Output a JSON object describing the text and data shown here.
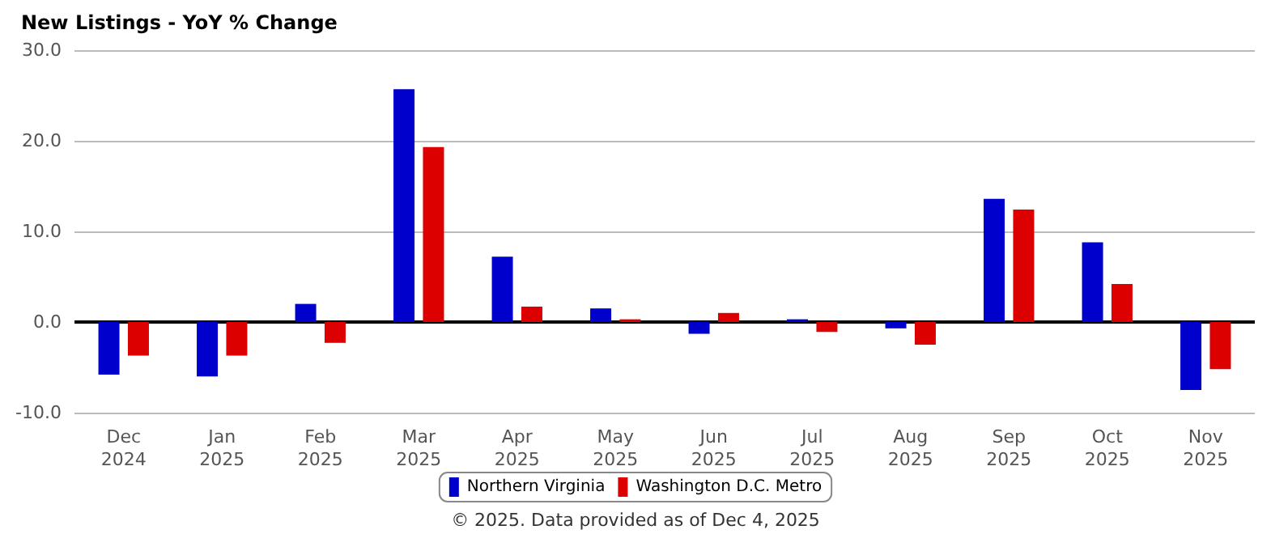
{
  "chart_data": {
    "type": "bar",
    "title": "New Listings - YoY % Change",
    "categories": [
      "Dec\n2024",
      "Jan\n2025",
      "Feb\n2025",
      "Mar\n2025",
      "Apr\n2025",
      "May\n2025",
      "Jun\n2025",
      "Jul\n2025",
      "Aug\n2025",
      "Sep\n2025",
      "Oct\n2025",
      "Nov\n2025"
    ],
    "series": [
      {
        "name": "Northern Virginia",
        "color": "#0000cc",
        "values": [
          -5.8,
          -6.0,
          2.0,
          25.7,
          7.2,
          1.5,
          -1.3,
          0.3,
          -0.7,
          13.6,
          8.8,
          -7.5
        ]
      },
      {
        "name": "Washington D.C. Metro",
        "color": "#dd0000",
        "values": [
          -3.7,
          -3.7,
          -2.3,
          19.3,
          1.7,
          0.3,
          1.0,
          -1.1,
          -2.5,
          12.4,
          4.2,
          -5.2
        ]
      }
    ],
    "ylim": [
      -10,
      30
    ],
    "yticks": [
      {
        "value": -10,
        "label": "-10.0"
      },
      {
        "value": 0,
        "label": "0.0"
      },
      {
        "value": 10,
        "label": "10.0"
      },
      {
        "value": 20,
        "label": "20.0"
      },
      {
        "value": 30,
        "label": "30.0"
      }
    ],
    "grid": "y",
    "legend": "bottom",
    "ref_lines": [
      {
        "axis": "y",
        "value": 0,
        "color": "#000000"
      }
    ],
    "annotations": [
      "© 2025. Data provided as of Dec 4, 2025"
    ]
  }
}
